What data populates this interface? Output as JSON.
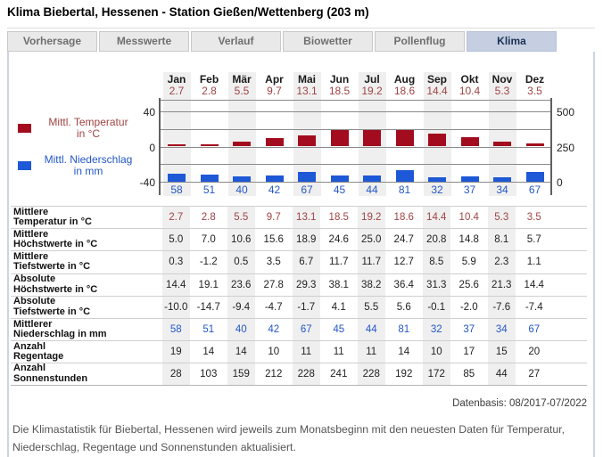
{
  "title": "Klima Biebertal, Hessenen - Station Gießen/Wettenberg (203 m)",
  "tabs": [
    {
      "label": "Vorhersage",
      "active": false
    },
    {
      "label": "Messwerte",
      "active": false
    },
    {
      "label": "Verlauf",
      "active": false
    },
    {
      "label": "Biowetter",
      "active": false
    },
    {
      "label": "Pollenflug",
      "active": false
    },
    {
      "label": "Klima",
      "active": true
    }
  ],
  "colors": {
    "temp_bar": "#a30b1e",
    "temp_text": "#a04343",
    "precip_bar": "#1d58d6",
    "precip_text": "#2457c5",
    "active_tab_bg": "#c5cfe1",
    "column_stripe": "#efefef"
  },
  "chart_data": {
    "type": "bar",
    "categories": [
      "Jan",
      "Feb",
      "Mär",
      "Apr",
      "Mai",
      "Jun",
      "Jul",
      "Aug",
      "Sep",
      "Okt",
      "Nov",
      "Dez"
    ],
    "series": [
      {
        "name": "Mittl. Temperatur in °C",
        "axis": "left",
        "color": "#a30b1e",
        "values": [
          2.7,
          2.8,
          5.5,
          9.7,
          13.1,
          18.5,
          19.2,
          18.6,
          14.4,
          10.4,
          5.3,
          3.5
        ]
      },
      {
        "name": "Mittl. Niederschlag in mm",
        "axis": "right",
        "color": "#1d58d6",
        "values": [
          58,
          51,
          40,
          42,
          67,
          45,
          44,
          81,
          32,
          37,
          34,
          67
        ]
      }
    ],
    "left_axis": {
      "ticks": [
        40,
        0,
        -40
      ],
      "range": [
        -40,
        40
      ]
    },
    "right_axis": {
      "ticks": [
        500,
        250,
        0
      ],
      "range": [
        0,
        500
      ]
    },
    "grid": true,
    "legend_position": "left",
    "legend": [
      {
        "line1": "Mittl. Temperatur",
        "line2": "in °C"
      },
      {
        "line1": "Mittl. Niederschlag",
        "line2": "in mm"
      }
    ]
  },
  "table": {
    "rows": [
      {
        "label": [
          "Mittlere",
          "Temperatur in °C"
        ],
        "color": "red",
        "values": [
          "2.7",
          "2.8",
          "5.5",
          "9.7",
          "13.1",
          "18.5",
          "19.2",
          "18.6",
          "14.4",
          "10.4",
          "5.3",
          "3.5"
        ]
      },
      {
        "label": [
          "Mittlere",
          "Höchstwerte in °C"
        ],
        "color": "black",
        "values": [
          "5.0",
          "7.0",
          "10.6",
          "15.6",
          "18.9",
          "24.6",
          "25.0",
          "24.7",
          "20.8",
          "14.8",
          "8.1",
          "5.7"
        ]
      },
      {
        "label": [
          "Mittlere",
          "Tiefstwerte in °C"
        ],
        "color": "black",
        "values": [
          "0.3",
          "-1.2",
          "0.5",
          "3.5",
          "6.7",
          "11.7",
          "11.7",
          "12.7",
          "8.5",
          "5.9",
          "2.3",
          "1.1"
        ]
      },
      {
        "label": [
          "Absolute",
          "Höchstwerte in °C"
        ],
        "color": "black",
        "values": [
          "14.4",
          "19.1",
          "23.6",
          "27.8",
          "29.3",
          "38.1",
          "38.2",
          "36.4",
          "31.3",
          "25.6",
          "21.3",
          "14.4"
        ]
      },
      {
        "label": [
          "Absolute",
          "Tiefstwerte in °C"
        ],
        "color": "black",
        "values": [
          "-10.0",
          "-14.7",
          "-9.4",
          "-4.7",
          "-1.7",
          "4.1",
          "5.5",
          "5.6",
          "-0.1",
          "-2.0",
          "-7.6",
          "-7.4"
        ]
      },
      {
        "label": [
          "Mittlerer",
          "Niederschlag in mm"
        ],
        "color": "blue",
        "values": [
          "58",
          "51",
          "40",
          "42",
          "67",
          "45",
          "44",
          "81",
          "32",
          "37",
          "34",
          "67"
        ]
      },
      {
        "label": [
          "Anzahl",
          "Regentage"
        ],
        "color": "black",
        "values": [
          "19",
          "14",
          "14",
          "10",
          "11",
          "11",
          "11",
          "14",
          "10",
          "17",
          "15",
          "20"
        ]
      },
      {
        "label": [
          "Anzahl",
          "Sonnenstunden"
        ],
        "color": "black",
        "values": [
          "28",
          "103",
          "159",
          "212",
          "228",
          "241",
          "228",
          "192",
          "172",
          "85",
          "44",
          "27"
        ]
      }
    ]
  },
  "datenbasis": "Datenbasis: 08/2017-07/2022",
  "footer": "Die Klimastatistik für Biebertal, Hessenen wird jeweils zum Monatsbeginn mit den neuesten Daten für Temperatur, Niederschlag, Regentage und Sonnenstunden aktualisiert."
}
